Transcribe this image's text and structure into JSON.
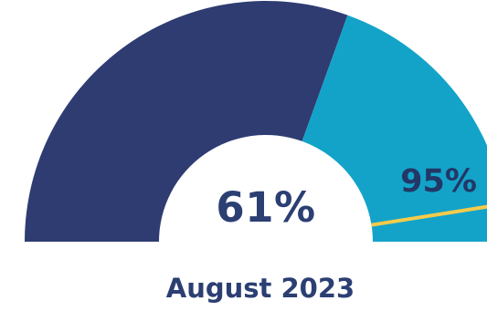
{
  "chart_data": {
    "type": "gauge",
    "value_label": "61%",
    "target_label": "95%",
    "value": 61,
    "target": 95,
    "range": [
      0,
      100
    ],
    "period_label": "August 2023",
    "colors": {
      "value_fill": "#2e3c72",
      "remaining_fill": "#13a3c9",
      "target_marker": "#f5cb4b",
      "label_text": "#2c3f73"
    }
  }
}
